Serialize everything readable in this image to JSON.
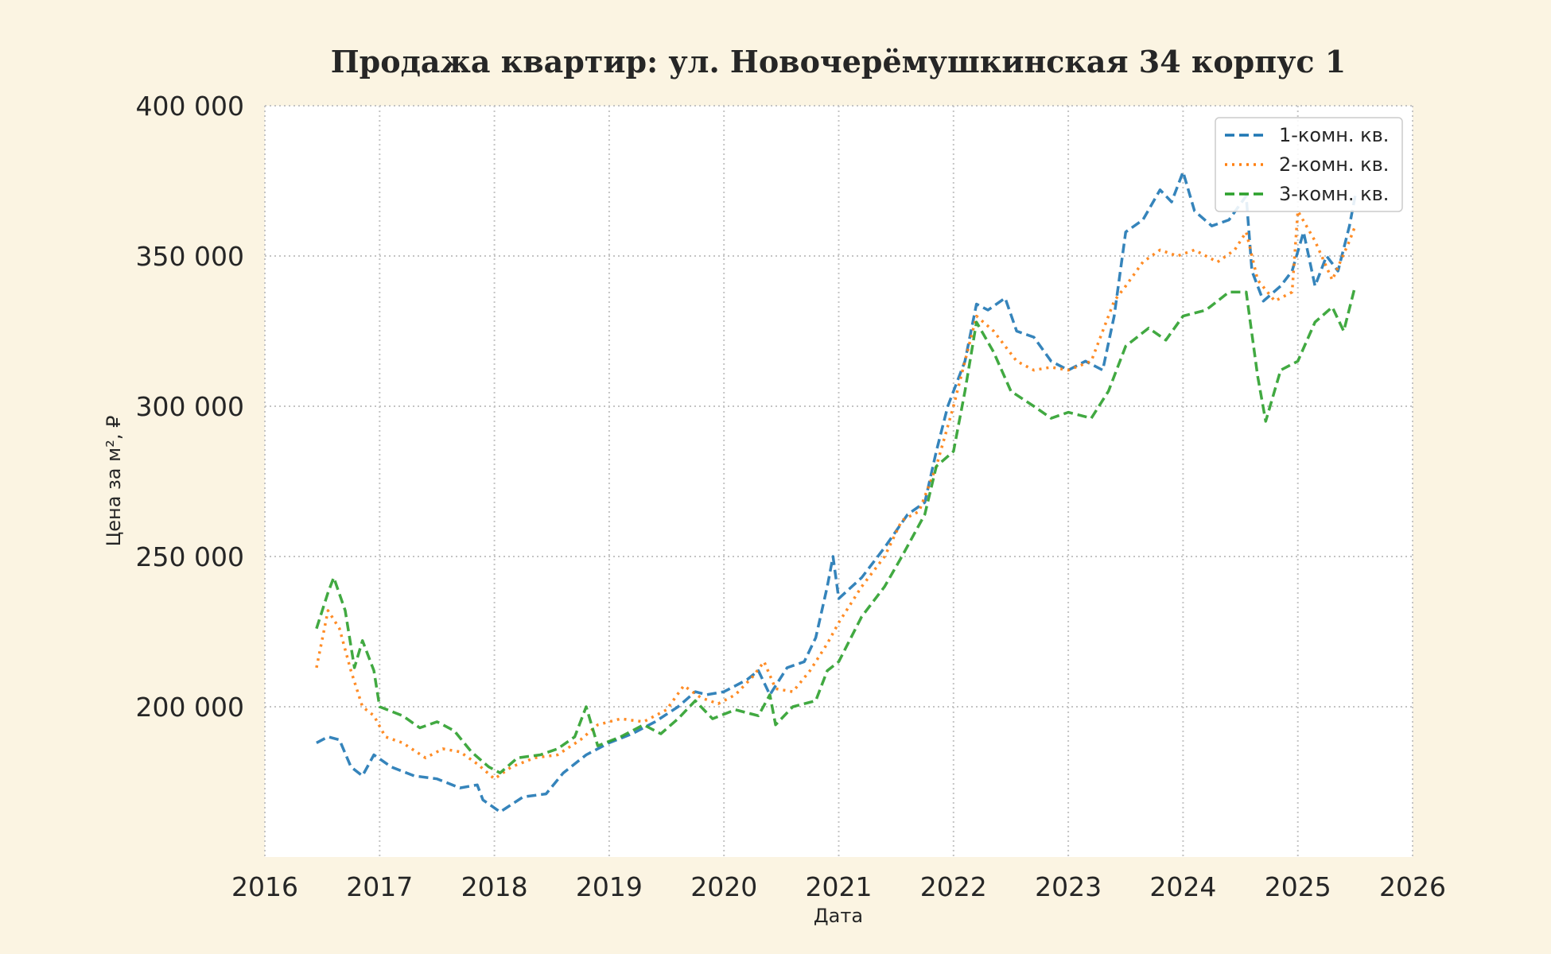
{
  "chart_data": {
    "type": "line",
    "title": "Продажа квартир: ул. Новочерёмушкинская 34 корпус 1",
    "xlabel": "Дата",
    "ylabel": "Цена за м², ₽",
    "xlim": [
      2016,
      2026
    ],
    "ylim": [
      150000,
      400000
    ],
    "x_ticks": [
      "2016",
      "2017",
      "2018",
      "2019",
      "2020",
      "2021",
      "2022",
      "2023",
      "2024",
      "2025",
      "2026"
    ],
    "y_ticks": [
      {
        "value": 200000,
        "label": "200 000"
      },
      {
        "value": 250000,
        "label": "250 000"
      },
      {
        "value": 300000,
        "label": "300 000"
      },
      {
        "value": 350000,
        "label": "350 000"
      },
      {
        "value": 400000,
        "label": "400 000"
      }
    ],
    "grid": true,
    "legend_position": "top-right",
    "series": [
      {
        "name": "1-комн. кв.",
        "color": "#1f77b4",
        "line_style": "dashed",
        "points": [
          [
            2016.45,
            188000
          ],
          [
            2016.55,
            190000
          ],
          [
            2016.65,
            189000
          ],
          [
            2016.75,
            180000
          ],
          [
            2016.85,
            177000
          ],
          [
            2016.95,
            184000
          ],
          [
            2017.1,
            180000
          ],
          [
            2017.3,
            177000
          ],
          [
            2017.5,
            176000
          ],
          [
            2017.7,
            173000
          ],
          [
            2017.85,
            174000
          ],
          [
            2017.9,
            169000
          ],
          [
            2018.05,
            165000
          ],
          [
            2018.25,
            170000
          ],
          [
            2018.45,
            171000
          ],
          [
            2018.6,
            178000
          ],
          [
            2018.8,
            184000
          ],
          [
            2019.0,
            188000
          ],
          [
            2019.2,
            191000
          ],
          [
            2019.4,
            195000
          ],
          [
            2019.6,
            200000
          ],
          [
            2019.75,
            205000
          ],
          [
            2019.85,
            204000
          ],
          [
            2020.0,
            205000
          ],
          [
            2020.2,
            209000
          ],
          [
            2020.3,
            212000
          ],
          [
            2020.4,
            204000
          ],
          [
            2020.55,
            213000
          ],
          [
            2020.7,
            215000
          ],
          [
            2020.8,
            223000
          ],
          [
            2020.9,
            240000
          ],
          [
            2020.95,
            250000
          ],
          [
            2021.0,
            236000
          ],
          [
            2021.2,
            243000
          ],
          [
            2021.4,
            253000
          ],
          [
            2021.6,
            264000
          ],
          [
            2021.75,
            268000
          ],
          [
            2021.85,
            285000
          ],
          [
            2021.95,
            300000
          ],
          [
            2022.1,
            315000
          ],
          [
            2022.2,
            334000
          ],
          [
            2022.3,
            332000
          ],
          [
            2022.45,
            336000
          ],
          [
            2022.55,
            325000
          ],
          [
            2022.7,
            323000
          ],
          [
            2022.85,
            315000
          ],
          [
            2023.0,
            312000
          ],
          [
            2023.15,
            315000
          ],
          [
            2023.3,
            312000
          ],
          [
            2023.4,
            330000
          ],
          [
            2023.5,
            358000
          ],
          [
            2023.65,
            362000
          ],
          [
            2023.8,
            372000
          ],
          [
            2023.9,
            368000
          ],
          [
            2024.0,
            378000
          ],
          [
            2024.1,
            365000
          ],
          [
            2024.25,
            360000
          ],
          [
            2024.4,
            362000
          ],
          [
            2024.55,
            370000
          ],
          [
            2024.6,
            345000
          ],
          [
            2024.7,
            335000
          ],
          [
            2024.85,
            340000
          ],
          [
            2024.95,
            345000
          ],
          [
            2025.05,
            358000
          ],
          [
            2025.15,
            340000
          ],
          [
            2025.25,
            350000
          ],
          [
            2025.35,
            345000
          ],
          [
            2025.45,
            360000
          ],
          [
            2025.5,
            370000
          ]
        ]
      },
      {
        "name": "2-комн. кв.",
        "color": "#ff7f0e",
        "line_style": "dotted",
        "points": [
          [
            2016.45,
            213000
          ],
          [
            2016.55,
            232000
          ],
          [
            2016.65,
            226000
          ],
          [
            2016.75,
            212000
          ],
          [
            2016.85,
            200000
          ],
          [
            2016.95,
            197000
          ],
          [
            2017.05,
            190000
          ],
          [
            2017.2,
            188000
          ],
          [
            2017.4,
            183000
          ],
          [
            2017.55,
            186000
          ],
          [
            2017.7,
            185000
          ],
          [
            2017.85,
            181000
          ],
          [
            2018.0,
            176000
          ],
          [
            2018.15,
            180000
          ],
          [
            2018.35,
            183000
          ],
          [
            2018.55,
            184000
          ],
          [
            2018.75,
            189000
          ],
          [
            2018.9,
            194000
          ],
          [
            2019.1,
            196000
          ],
          [
            2019.3,
            195000
          ],
          [
            2019.5,
            199000
          ],
          [
            2019.65,
            207000
          ],
          [
            2019.8,
            203000
          ],
          [
            2019.95,
            201000
          ],
          [
            2020.1,
            204000
          ],
          [
            2020.25,
            210000
          ],
          [
            2020.35,
            215000
          ],
          [
            2020.45,
            206000
          ],
          [
            2020.6,
            205000
          ],
          [
            2020.75,
            212000
          ],
          [
            2020.9,
            221000
          ],
          [
            2021.0,
            228000
          ],
          [
            2021.2,
            240000
          ],
          [
            2021.4,
            250000
          ],
          [
            2021.55,
            262000
          ],
          [
            2021.7,
            265000
          ],
          [
            2021.85,
            280000
          ],
          [
            2022.0,
            300000
          ],
          [
            2022.1,
            315000
          ],
          [
            2022.2,
            330000
          ],
          [
            2022.35,
            325000
          ],
          [
            2022.45,
            320000
          ],
          [
            2022.55,
            315000
          ],
          [
            2022.7,
            312000
          ],
          [
            2022.85,
            313000
          ],
          [
            2023.0,
            312000
          ],
          [
            2023.2,
            315000
          ],
          [
            2023.3,
            325000
          ],
          [
            2023.4,
            335000
          ],
          [
            2023.5,
            340000
          ],
          [
            2023.65,
            348000
          ],
          [
            2023.8,
            352000
          ],
          [
            2023.95,
            350000
          ],
          [
            2024.1,
            352000
          ],
          [
            2024.3,
            348000
          ],
          [
            2024.45,
            352000
          ],
          [
            2024.55,
            358000
          ],
          [
            2024.65,
            342000
          ],
          [
            2024.8,
            335000
          ],
          [
            2024.95,
            338000
          ],
          [
            2025.0,
            365000
          ],
          [
            2025.15,
            355000
          ],
          [
            2025.3,
            342000
          ],
          [
            2025.45,
            355000
          ],
          [
            2025.5,
            360000
          ]
        ]
      },
      {
        "name": "3-комн. кв.",
        "color": "#2ca02c",
        "line_style": "dashed",
        "points": [
          [
            2016.45,
            226000
          ],
          [
            2016.55,
            238000
          ],
          [
            2016.6,
            243000
          ],
          [
            2016.7,
            232000
          ],
          [
            2016.78,
            213000
          ],
          [
            2016.85,
            222000
          ],
          [
            2016.95,
            212000
          ],
          [
            2017.0,
            200000
          ],
          [
            2017.2,
            197000
          ],
          [
            2017.35,
            193000
          ],
          [
            2017.5,
            195000
          ],
          [
            2017.65,
            192000
          ],
          [
            2017.8,
            185000
          ],
          [
            2017.95,
            180000
          ],
          [
            2018.05,
            178000
          ],
          [
            2018.2,
            183000
          ],
          [
            2018.4,
            184000
          ],
          [
            2018.55,
            186000
          ],
          [
            2018.7,
            190000
          ],
          [
            2018.8,
            200000
          ],
          [
            2018.9,
            187000
          ],
          [
            2019.1,
            190000
          ],
          [
            2019.3,
            194000
          ],
          [
            2019.45,
            191000
          ],
          [
            2019.6,
            196000
          ],
          [
            2019.75,
            202000
          ],
          [
            2019.9,
            196000
          ],
          [
            2020.1,
            199000
          ],
          [
            2020.3,
            197000
          ],
          [
            2020.4,
            204000
          ],
          [
            2020.45,
            194000
          ],
          [
            2020.6,
            200000
          ],
          [
            2020.8,
            202000
          ],
          [
            2020.9,
            212000
          ],
          [
            2021.0,
            215000
          ],
          [
            2021.2,
            230000
          ],
          [
            2021.4,
            240000
          ],
          [
            2021.55,
            250000
          ],
          [
            2021.75,
            264000
          ],
          [
            2021.85,
            280000
          ],
          [
            2022.0,
            285000
          ],
          [
            2022.1,
            305000
          ],
          [
            2022.2,
            328000
          ],
          [
            2022.35,
            318000
          ],
          [
            2022.5,
            305000
          ],
          [
            2022.7,
            300000
          ],
          [
            2022.85,
            296000
          ],
          [
            2023.0,
            298000
          ],
          [
            2023.2,
            296000
          ],
          [
            2023.35,
            305000
          ],
          [
            2023.5,
            320000
          ],
          [
            2023.7,
            326000
          ],
          [
            2023.85,
            322000
          ],
          [
            2024.0,
            330000
          ],
          [
            2024.2,
            332000
          ],
          [
            2024.4,
            338000
          ],
          [
            2024.55,
            338000
          ],
          [
            2024.65,
            310000
          ],
          [
            2024.72,
            295000
          ],
          [
            2024.85,
            312000
          ],
          [
            2025.0,
            315000
          ],
          [
            2025.15,
            328000
          ],
          [
            2025.3,
            333000
          ],
          [
            2025.4,
            325000
          ],
          [
            2025.5,
            340000
          ]
        ]
      }
    ]
  }
}
